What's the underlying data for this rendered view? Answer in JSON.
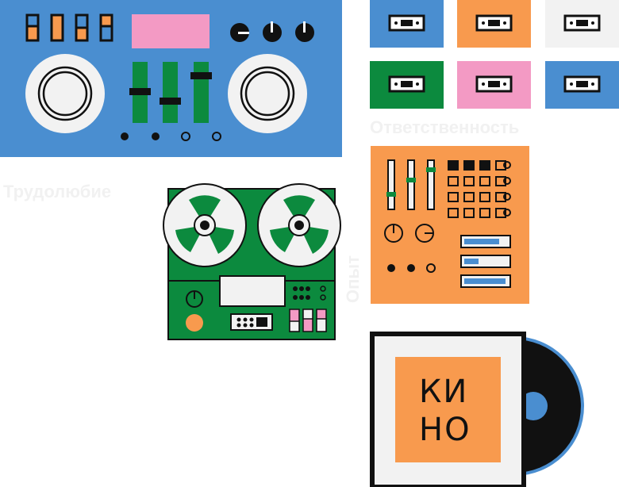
{
  "labels": {
    "diligence": "Трудолюбие",
    "responsibility": "Ответственность",
    "experience": "Опыт"
  },
  "album": {
    "title_line1": "КИ",
    "title_line2": "НО"
  },
  "cassettes": [
    {
      "color": "#4a8ed0",
      "icon": "cassette-icon"
    },
    {
      "color": "#f89a4e",
      "icon": "cassette-icon"
    },
    {
      "color": "#f2f2f2",
      "icon": "cassette-icon"
    },
    {
      "color": "#0c8a3e",
      "icon": "cassette-icon"
    },
    {
      "color": "#f39ac4",
      "icon": "cassette-icon"
    },
    {
      "color": "#4a8ed0",
      "icon": "cassette-icon"
    }
  ],
  "colors": {
    "blue": "#4a8ed0",
    "orange": "#f89a4e",
    "green": "#0c8a3e",
    "pink": "#f39ac4",
    "light": "#f2f2f2",
    "black": "#111111"
  },
  "illustrations": [
    "boombox-illustration",
    "reel-to-reel-tape-recorder-illustration",
    "drum-machine-illustration",
    "vinyl-record-sleeve-illustration"
  ]
}
